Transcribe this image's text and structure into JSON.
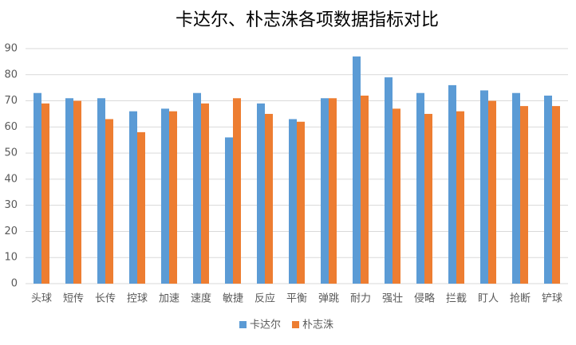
{
  "chart_data": {
    "type": "bar",
    "title": "卡达尔、朴志洙各项数据指标对比",
    "categories": [
      "头球",
      "短传",
      "长传",
      "控球",
      "加速",
      "速度",
      "敏捷",
      "反应",
      "平衡",
      "弹跳",
      "耐力",
      "强壮",
      "侵略",
      "拦截",
      "盯人",
      "抢断",
      "铲球"
    ],
    "series": [
      {
        "name": "卡达尔",
        "color": "#5b9bd5",
        "values": [
          73,
          71,
          71,
          66,
          67,
          73,
          56,
          69,
          63,
          71,
          87,
          79,
          73,
          76,
          74,
          73,
          72
        ]
      },
      {
        "name": "朴志洙",
        "color": "#ed7d31",
        "values": [
          69,
          70,
          63,
          58,
          66,
          69,
          71,
          65,
          62,
          71,
          72,
          67,
          65,
          66,
          70,
          68,
          68
        ]
      }
    ],
    "ylim": [
      0,
      90
    ],
    "yticks": [
      0,
      10,
      20,
      30,
      40,
      50,
      60,
      70,
      80,
      90
    ],
    "grid": true,
    "legend": "bottom"
  }
}
